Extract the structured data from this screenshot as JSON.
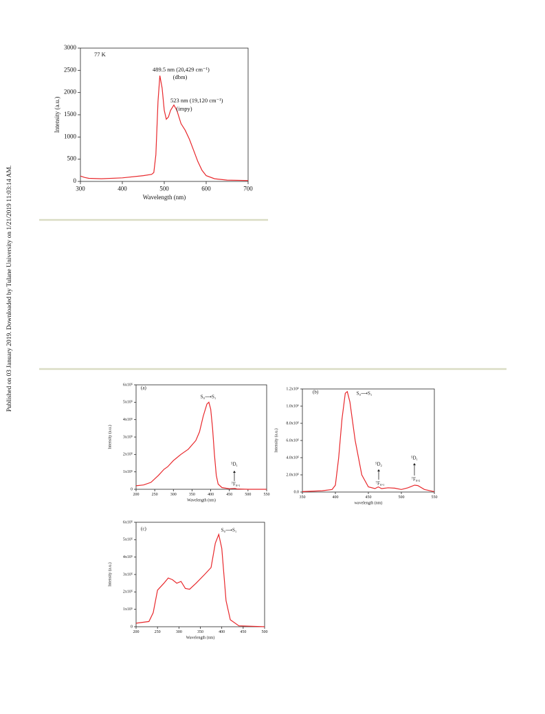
{
  "document": {
    "sidebar": "Published on 03 January 2019. Downloaded by Tulane University on 1/21/2019 11:03:14 AM."
  },
  "chart_data": [
    {
      "type": "line",
      "xlabel": "Wavelength (nm)",
      "ylabel": "Intensity (a.u.)",
      "annotations": [
        "77 K",
        "489.5 nm (20,429 cm⁻¹)",
        "(dbm)",
        "523 nm (19,120 cm⁻¹)",
        "(impy)"
      ],
      "color": "#e8262a",
      "x": [
        300,
        310,
        320,
        350,
        400,
        450,
        470,
        475,
        480,
        485,
        489.5,
        495,
        500,
        505,
        510,
        515,
        523,
        530,
        540,
        550,
        560,
        570,
        580,
        590,
        600,
        620,
        650,
        700
      ],
      "values": [
        120,
        90,
        70,
        60,
        80,
        130,
        160,
        200,
        600,
        1800,
        2380,
        2100,
        1600,
        1400,
        1450,
        1600,
        1720,
        1600,
        1300,
        1150,
        950,
        700,
        450,
        250,
        130,
        60,
        30,
        20
      ],
      "xlim": [
        300,
        700
      ],
      "xticks": [
        300,
        400,
        500,
        600,
        700
      ],
      "ylim": [
        0,
        3000
      ],
      "yticks": [
        0,
        500,
        1000,
        1500,
        2000,
        2500,
        3000
      ]
    },
    {
      "type": "line",
      "xlabel": "Wavelength (nm)",
      "ylabel": "Intensity (a.u.)",
      "annotations": [
        "(a)",
        "S₀⟶S₁",
        "⁵D₁",
        "⁷F₀,₁"
      ],
      "color": "#e8262a",
      "x": [
        200,
        220,
        240,
        260,
        275,
        285,
        300,
        320,
        340,
        360,
        370,
        380,
        390,
        395,
        400,
        405,
        410,
        415,
        420,
        430,
        450,
        465,
        470,
        500,
        550
      ],
      "values": [
        20000,
        25000,
        40000,
        80000,
        115000,
        130000,
        165000,
        200000,
        230000,
        280000,
        330000,
        420000,
        490000,
        500000,
        460000,
        350000,
        200000,
        80000,
        30000,
        10000,
        3000,
        5000,
        2000,
        0,
        0
      ],
      "xlim": [
        200,
        550
      ],
      "xticks": [
        200,
        250,
        300,
        350,
        400,
        450,
        500,
        550
      ],
      "ylim": [
        0,
        600000
      ],
      "yticks": [
        0,
        {
          "value": 100000,
          "label": "1x10⁵"
        },
        {
          "value": 200000,
          "label": "2x10⁵"
        },
        {
          "value": 300000,
          "label": "3x10⁵"
        },
        {
          "value": 400000,
          "label": "4x10⁵"
        },
        {
          "value": 500000,
          "label": "5x10⁵"
        },
        {
          "value": 600000,
          "label": "6x10⁵"
        }
      ]
    },
    {
      "type": "line",
      "xlabel": "wavelength (nm)",
      "ylabel": "Intensity (a.u.)",
      "annotations": [
        "(b)",
        "S₀⟶S₁",
        "⁵D₂",
        "⁷F₀,₁",
        "⁵D₁",
        "⁷F₀,₂"
      ],
      "color": "#e8262a",
      "x": [
        350,
        380,
        395,
        400,
        405,
        410,
        415,
        418,
        422,
        430,
        440,
        450,
        460,
        465,
        470,
        480,
        490,
        500,
        510,
        520,
        525,
        535,
        550
      ],
      "values": [
        5000,
        15000,
        30000,
        80000,
        400000,
        850000,
        1150000,
        1170000,
        1050000,
        600000,
        200000,
        60000,
        40000,
        60000,
        40000,
        50000,
        45000,
        30000,
        50000,
        80000,
        75000,
        30000,
        5000
      ],
      "xlim": [
        350,
        550
      ],
      "xticks": [
        350,
        400,
        450,
        500,
        550
      ],
      "ylim": [
        0,
        1200000
      ],
      "yticks": [
        {
          "value": 0,
          "label": "0.0"
        },
        {
          "value": 200000,
          "label": "2.0x10⁵"
        },
        {
          "value": 400000,
          "label": "4.0x10⁵"
        },
        {
          "value": 600000,
          "label": "6.0x10⁵"
        },
        {
          "value": 800000,
          "label": "8.0x10⁵"
        },
        {
          "value": 1000000,
          "label": "1.0x10⁶"
        },
        {
          "value": 1200000,
          "label": "1.2x10⁶"
        }
      ]
    },
    {
      "type": "line",
      "xlabel": "Wavelength (nm)",
      "ylabel": "Intensity (a.u.)",
      "annotations": [
        "(c)",
        "S₀⟶S₁"
      ],
      "color": "#e8262a",
      "x": [
        200,
        230,
        240,
        250,
        265,
        275,
        285,
        295,
        305,
        315,
        325,
        340,
        360,
        375,
        385,
        393,
        400,
        405,
        410,
        420,
        440,
        500
      ],
      "values": [
        20000,
        30000,
        80000,
        210000,
        250000,
        280000,
        270000,
        250000,
        260000,
        220000,
        215000,
        250000,
        300000,
        340000,
        480000,
        530000,
        450000,
        300000,
        150000,
        40000,
        5000,
        0
      ],
      "xlim": [
        200,
        500
      ],
      "xticks": [
        200,
        250,
        300,
        350,
        400,
        450,
        500
      ],
      "ylim": [
        0,
        600000
      ],
      "yticks": [
        0,
        {
          "value": 100000,
          "label": "1x10⁵"
        },
        {
          "value": 200000,
          "label": "2x10⁵"
        },
        {
          "value": 300000,
          "label": "3x10⁵"
        },
        {
          "value": 400000,
          "label": "4x10⁵"
        },
        {
          "value": 500000,
          "label": "5x10⁵"
        },
        {
          "value": 600000,
          "label": "6x10⁵"
        }
      ]
    }
  ]
}
